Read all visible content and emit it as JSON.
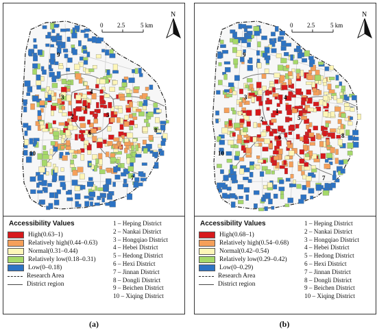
{
  "panels": [
    {
      "id": "a",
      "caption": "(a)",
      "legend_title": "Accessibility Values",
      "classes": [
        {
          "label": "High(0.63–1)",
          "color": "#d7191c"
        },
        {
          "label": "Relatively high(0.44–0.63)",
          "color": "#f5a05a"
        },
        {
          "label": "Normal(0.31–0.44)",
          "color": "#fdf6b8"
        },
        {
          "label": "Relatively low(0.18–0.31)",
          "color": "#a6d96a"
        },
        {
          "label": "Low(0–0.18)",
          "color": "#2c73c4"
        }
      ],
      "research_area_label": "Research Area",
      "district_region_label": "District region"
    },
    {
      "id": "b",
      "caption": "(b)",
      "legend_title": "Accessibility Values",
      "classes": [
        {
          "label": "High(0.68–1)",
          "color": "#d7191c"
        },
        {
          "label": "Relatively high(0.54–0.68)",
          "color": "#f5a05a"
        },
        {
          "label": "Normal(0.42–0.54)",
          "color": "#fdf6b8"
        },
        {
          "label": "Relatively low(0.29–0.42)",
          "color": "#a6d96a"
        },
        {
          "label": "Low(0–0.29)",
          "color": "#2c73c4"
        }
      ],
      "research_area_label": "Research Area",
      "district_region_label": "District region"
    }
  ],
  "districts": [
    "1 – Heping District",
    "2 – Nankai District",
    "3 – Hongqiao District",
    "4 – Hebei District",
    "5 – Hedong District",
    "6 – Hexi District",
    "7 – Jinnan District",
    "8 – Dongli District",
    "9 – Beichen District",
    "10 – Xiqing District"
  ],
  "map_numbers": [
    "1",
    "2",
    "3",
    "4",
    "5",
    "6",
    "7",
    "8",
    "9",
    "10"
  ],
  "scale_bar": {
    "ticks": [
      "0",
      "2.5",
      "5 km"
    ]
  },
  "north_label": "N",
  "icons": {
    "north_arrow": "north-arrow-icon"
  }
}
